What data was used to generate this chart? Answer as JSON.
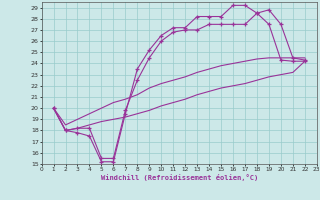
{
  "xlabel": "Windchill (Refroidissement éolien,°C)",
  "bg_color": "#cce8e8",
  "line_color": "#993399",
  "grid_color": "#99cccc",
  "xlim": [
    0,
    23
  ],
  "ylim": [
    15,
    29.5
  ],
  "xticks": [
    0,
    1,
    2,
    3,
    4,
    5,
    6,
    7,
    8,
    9,
    10,
    11,
    12,
    13,
    14,
    15,
    16,
    17,
    18,
    19,
    20,
    21,
    22,
    23
  ],
  "yticks": [
    15,
    16,
    17,
    18,
    19,
    20,
    21,
    22,
    23,
    24,
    25,
    26,
    27,
    28,
    29
  ],
  "series": [
    {
      "points": [
        [
          1,
          20
        ],
        [
          2,
          18
        ],
        [
          3,
          17.8
        ],
        [
          4,
          17.5
        ],
        [
          5,
          15.2
        ],
        [
          6,
          15.2
        ],
        [
          7,
          19.5
        ],
        [
          8,
          23.5
        ],
        [
          9,
          25.2
        ],
        [
          10,
          26.5
        ],
        [
          11,
          27.2
        ],
        [
          12,
          27.2
        ],
        [
          13,
          28.2
        ],
        [
          14,
          28.2
        ],
        [
          15,
          28.2
        ],
        [
          16,
          29.2
        ],
        [
          17,
          29.2
        ],
        [
          18,
          28.5
        ],
        [
          19,
          27.5
        ],
        [
          20,
          24.3
        ],
        [
          21,
          24.2
        ],
        [
          22,
          24.2
        ]
      ],
      "markers": true
    },
    {
      "points": [
        [
          1,
          20
        ],
        [
          2,
          18
        ],
        [
          3,
          18.2
        ],
        [
          4,
          18.2
        ],
        [
          5,
          15.5
        ],
        [
          6,
          15.5
        ],
        [
          7,
          19.8
        ],
        [
          8,
          22.5
        ],
        [
          9,
          24.5
        ],
        [
          10,
          26.0
        ],
        [
          11,
          26.8
        ],
        [
          12,
          27.0
        ],
        [
          13,
          27.0
        ],
        [
          14,
          27.5
        ],
        [
          15,
          27.5
        ],
        [
          16,
          27.5
        ],
        [
          17,
          27.5
        ],
        [
          18,
          28.5
        ],
        [
          19,
          28.8
        ],
        [
          20,
          27.5
        ],
        [
          21,
          24.5
        ],
        [
          22,
          24.3
        ]
      ],
      "markers": true
    },
    {
      "points": [
        [
          1,
          20
        ],
        [
          2,
          18.5
        ],
        [
          3,
          19.0
        ],
        [
          4,
          19.5
        ],
        [
          5,
          20.0
        ],
        [
          6,
          20.5
        ],
        [
          7,
          20.8
        ],
        [
          8,
          21.2
        ],
        [
          9,
          21.8
        ],
        [
          10,
          22.2
        ],
        [
          11,
          22.5
        ],
        [
          12,
          22.8
        ],
        [
          13,
          23.2
        ],
        [
          14,
          23.5
        ],
        [
          15,
          23.8
        ],
        [
          16,
          24.0
        ],
        [
          17,
          24.2
        ],
        [
          18,
          24.4
        ],
        [
          19,
          24.5
        ],
        [
          20,
          24.5
        ],
        [
          21,
          24.5
        ],
        [
          22,
          24.5
        ]
      ],
      "markers": false
    },
    {
      "points": [
        [
          1,
          20
        ],
        [
          2,
          18.0
        ],
        [
          3,
          18.2
        ],
        [
          4,
          18.5
        ],
        [
          5,
          18.8
        ],
        [
          6,
          19.0
        ],
        [
          7,
          19.2
        ],
        [
          8,
          19.5
        ],
        [
          9,
          19.8
        ],
        [
          10,
          20.2
        ],
        [
          11,
          20.5
        ],
        [
          12,
          20.8
        ],
        [
          13,
          21.2
        ],
        [
          14,
          21.5
        ],
        [
          15,
          21.8
        ],
        [
          16,
          22.0
        ],
        [
          17,
          22.2
        ],
        [
          18,
          22.5
        ],
        [
          19,
          22.8
        ],
        [
          20,
          23.0
        ],
        [
          21,
          23.2
        ],
        [
          22,
          24.2
        ]
      ],
      "markers": false
    }
  ]
}
